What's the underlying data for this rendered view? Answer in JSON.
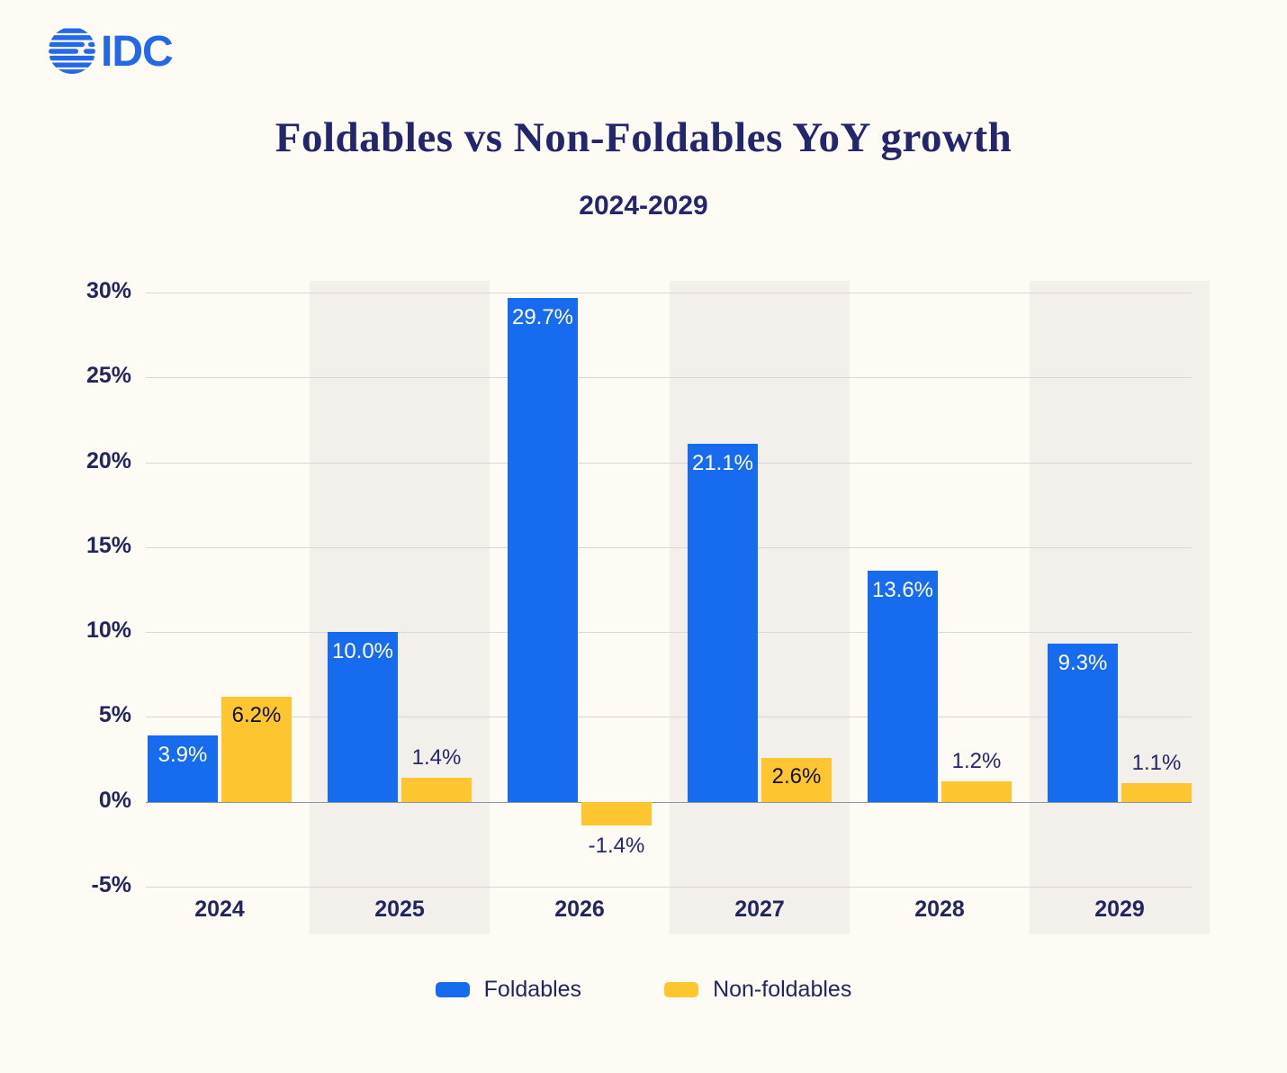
{
  "logo": {
    "text": "IDC",
    "color": "#2268E8"
  },
  "title": "Foldables vs Non-Foldables YoY growth",
  "subtitle": "2024-2029",
  "chart_data": {
    "type": "bar",
    "categories": [
      "2024",
      "2025",
      "2026",
      "2027",
      "2028",
      "2029"
    ],
    "series": [
      {
        "name": "Foldables",
        "color": "#176BEF",
        "values": [
          3.9,
          10.0,
          29.7,
          21.1,
          13.6,
          9.3
        ],
        "labels": [
          "3.9%",
          "10.0%",
          "29.7%",
          "21.1%",
          "13.6%",
          "9.3%"
        ]
      },
      {
        "name": "Non-foldables",
        "color": "#FDC52F",
        "values": [
          6.2,
          1.4,
          -1.4,
          2.6,
          1.2,
          1.1
        ],
        "labels": [
          "6.2%",
          "1.4%",
          "-1.4%",
          "2.6%",
          "1.2%",
          "1.1%"
        ]
      }
    ],
    "title": "Foldables vs Non-Foldables YoY growth",
    "subtitle": "2024-2029",
    "xlabel": "",
    "ylabel": "",
    "ylim": [
      -5,
      30
    ],
    "yticks": [
      30,
      25,
      20,
      15,
      10,
      5,
      0,
      -5
    ],
    "ytick_labels": [
      "30%",
      "25%",
      "20%",
      "15%",
      "10%",
      "5%",
      "0%",
      "-5%"
    ],
    "grid": true,
    "striped_columns": [
      1,
      3,
      5
    ],
    "legend_position": "bottom"
  },
  "legend": {
    "items": [
      {
        "label": "Foldables",
        "color": "#176BEF"
      },
      {
        "label": "Non-foldables",
        "color": "#FDC52F"
      }
    ]
  },
  "colors": {
    "background": "#FEFAF4",
    "stripe": "#F3EFEA",
    "gridline": "#D9D6DB",
    "zero_line": "#8F92A0",
    "navy_text": "#23266A",
    "bar_label_on_blue": "#FFFFFF",
    "bar_label_on_yellow": "#0F1023"
  }
}
